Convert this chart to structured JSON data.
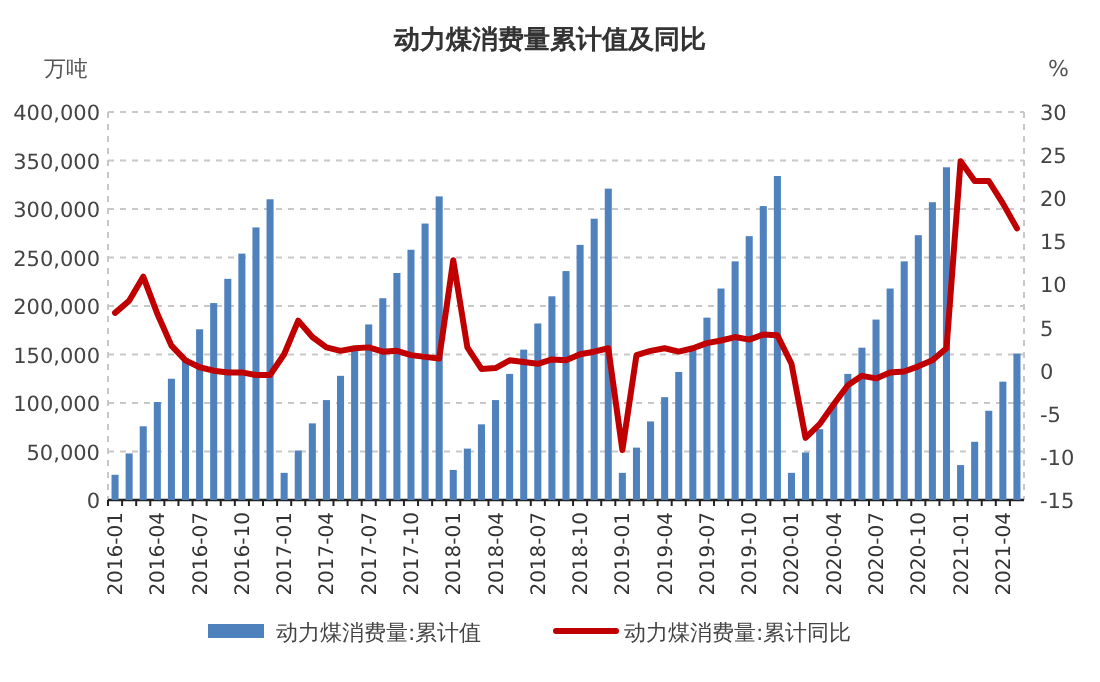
{
  "chart_data": {
    "type": "bar",
    "title": "动力煤消费量累计值及同比",
    "ylabel": "万吨",
    "y2label": "%",
    "categories": [
      "2016-01",
      null,
      null,
      "2016-04",
      null,
      null,
      "2016-07",
      null,
      null,
      "2016-10",
      null,
      null,
      "2017-01",
      null,
      null,
      "2017-04",
      null,
      null,
      "2017-07",
      null,
      null,
      "2017-10",
      null,
      null,
      "2018-01",
      null,
      null,
      "2018-04",
      null,
      null,
      "2018-07",
      null,
      null,
      "2018-10",
      null,
      null,
      "2019-01",
      null,
      null,
      "2019-04",
      null,
      null,
      "2019-07",
      null,
      null,
      "2019-10",
      null,
      null,
      "2020-01",
      null,
      null,
      "2020-04",
      null,
      null,
      "2020-07",
      null,
      null,
      "2020-10",
      null,
      null,
      "2021-01",
      null,
      null,
      "2021-04",
      null
    ],
    "series": [
      {
        "name": "动力煤消费量:累计值",
        "color": "#4f81bd",
        "values": [
          26000,
          48000,
          76000,
          101000,
          125000,
          146000,
          176000,
          203000,
          228000,
          254000,
          281000,
          310000,
          28000,
          51000,
          79000,
          103000,
          128000,
          155000,
          181000,
          208000,
          234000,
          258000,
          285000,
          313000,
          31000,
          53000,
          78000,
          103000,
          130000,
          155000,
          182000,
          210000,
          236000,
          263000,
          290000,
          321000,
          28000,
          54000,
          81000,
          106000,
          132000,
          156000,
          188000,
          218000,
          246000,
          272000,
          303000,
          334000,
          28000,
          49000,
          73000,
          99000,
          130000,
          157000,
          186000,
          218000,
          246000,
          273000,
          307000,
          343000,
          36000,
          60000,
          92000,
          122000,
          151000
        ]
      },
      {
        "name": "动力煤消费量:累计同比",
        "type": "line",
        "axis": "y2",
        "color": "#c00000",
        "values": [
          6.7,
          8.1,
          10.9,
          6.6,
          2.9,
          1.2,
          0.4,
          0,
          -0.2,
          -0.2,
          -0.5,
          -0.5,
          1.9,
          5.8,
          3.9,
          2.7,
          2.3,
          2.6,
          2.7,
          2.2,
          2.3,
          1.8,
          1.6,
          1.4,
          12.8,
          2.7,
          0.2,
          0.3,
          1.2,
          1.0,
          0.8,
          1.3,
          1.2,
          1.9,
          2.2,
          2.6,
          -9.2,
          1.8,
          2.3,
          2.6,
          2.2,
          2.6,
          3.2,
          3.5,
          3.9,
          3.6,
          4.2,
          4.1,
          0.8,
          -7.8,
          -6.2,
          -3.9,
          -1.7,
          -0.6,
          -0.9,
          -0.2,
          -0.1,
          0.5,
          1.2,
          2.6,
          24.3,
          22.0,
          22.0,
          19.4,
          16.5
        ]
      }
    ],
    "ylim": [
      0,
      400000
    ],
    "yticks": [
      0,
      {
        "value": 50000,
        "label": "50,000"
      },
      {
        "value": 100000,
        "label": "100,000"
      },
      {
        "value": 150000,
        "label": "150,000"
      },
      {
        "value": 200000,
        "label": "200,000"
      },
      {
        "value": 250000,
        "label": "250,000"
      },
      {
        "value": 300000,
        "label": "300,000"
      },
      {
        "value": 350000,
        "label": "350,000"
      },
      {
        "value": 400000,
        "label": "400,000"
      }
    ],
    "y2lim": [
      -15,
      30
    ],
    "y2ticks": [
      -15,
      -10,
      -5,
      0,
      5,
      10,
      15,
      20,
      25,
      30
    ],
    "grid": "y",
    "legend": "bottom"
  }
}
